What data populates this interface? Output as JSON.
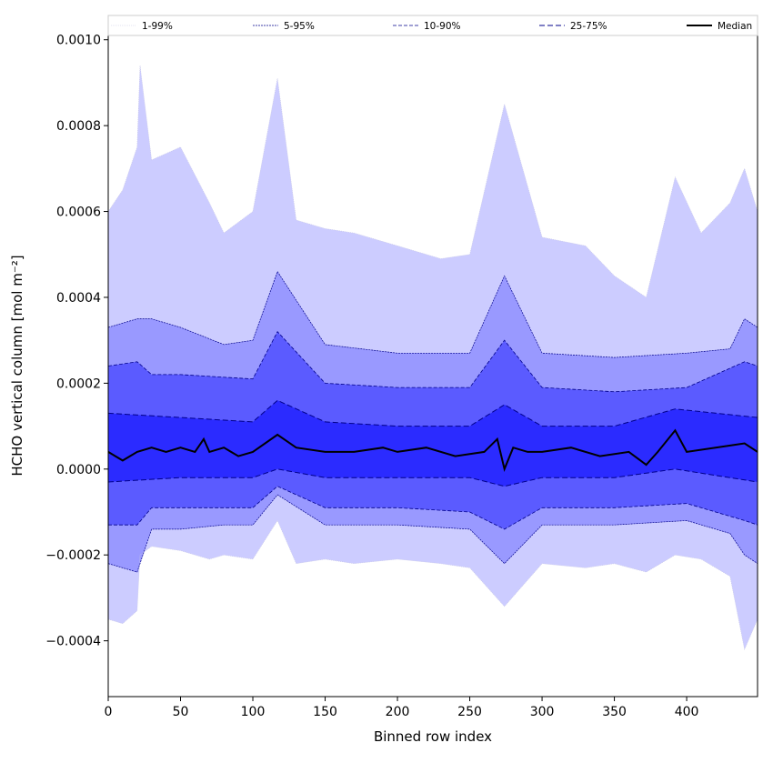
{
  "chart_data": {
    "type": "area",
    "xlabel": "Binned row index",
    "ylabel": "HCHO vertical column [mol m⁻²]",
    "xlim": [
      0,
      449
    ],
    "ylim": [
      -0.00053,
      0.00101
    ],
    "x_ticks": [
      0,
      50,
      100,
      150,
      200,
      250,
      300,
      350,
      400
    ],
    "x_tick_labels": [
      "0",
      "50",
      "100",
      "150",
      "200",
      "250",
      "300",
      "350",
      "400"
    ],
    "y_ticks": [
      -0.0004,
      -0.0002,
      0.0,
      0.0002,
      0.0004,
      0.0006,
      0.0008,
      0.001
    ],
    "y_tick_labels": [
      "−0.0004",
      "−0.0002",
      "0.0000",
      "0.0002",
      "0.0004",
      "0.0006",
      "0.0008",
      "0.0010"
    ],
    "grid": false,
    "legend_position": "top",
    "colors": {
      "band_1_99": "#ccccff",
      "band_5_95": "#9999ff",
      "band_10_90": "#5b5bff",
      "band_25_75": "#2b2bff",
      "percentile_line": "#00008b",
      "median": "#000000"
    },
    "series": [
      {
        "name": "1-99%",
        "x": [
          0,
          10,
          20,
          22,
          30,
          50,
          70,
          80,
          100,
          117,
          130,
          150,
          170,
          200,
          230,
          250,
          274,
          300,
          330,
          350,
          372,
          392,
          410,
          430,
          440,
          449
        ],
        "upper": [
          0.0006,
          0.00065,
          0.00075,
          0.00094,
          0.00072,
          0.00075,
          0.00062,
          0.00055,
          0.0006,
          0.00091,
          0.00058,
          0.00056,
          0.00055,
          0.00052,
          0.00049,
          0.0005,
          0.00085,
          0.00054,
          0.00052,
          0.00045,
          0.0004,
          0.00068,
          0.00055,
          0.00062,
          0.0007,
          0.0006
        ],
        "lower": [
          -0.00035,
          -0.00036,
          -0.00033,
          -0.0002,
          -0.00018,
          -0.00019,
          -0.00021,
          -0.0002,
          -0.00021,
          -0.00012,
          -0.00022,
          -0.00021,
          -0.00022,
          -0.00021,
          -0.00022,
          -0.00023,
          -0.00032,
          -0.00022,
          -0.00023,
          -0.00022,
          -0.00024,
          -0.0002,
          -0.00021,
          -0.00025,
          -0.00042,
          -0.00035
        ]
      },
      {
        "name": "5-95%",
        "x": [
          0,
          20,
          30,
          50,
          80,
          100,
          117,
          150,
          200,
          250,
          274,
          300,
          350,
          400,
          430,
          440,
          449
        ],
        "upper": [
          0.00033,
          0.00035,
          0.00035,
          0.00033,
          0.00029,
          0.0003,
          0.00046,
          0.00029,
          0.00027,
          0.00027,
          0.00045,
          0.00027,
          0.00026,
          0.00027,
          0.00028,
          0.00035,
          0.00033
        ],
        "lower": [
          -0.00022,
          -0.00024,
          -0.00014,
          -0.00014,
          -0.00013,
          -0.00013,
          -6e-05,
          -0.00013,
          -0.00013,
          -0.00014,
          -0.00022,
          -0.00013,
          -0.00013,
          -0.00012,
          -0.00015,
          -0.0002,
          -0.00022
        ]
      },
      {
        "name": "10-90%",
        "x": [
          0,
          20,
          30,
          50,
          100,
          117,
          150,
          200,
          250,
          274,
          300,
          350,
          400,
          440,
          449
        ],
        "upper": [
          0.00024,
          0.00025,
          0.00022,
          0.00022,
          0.00021,
          0.00032,
          0.0002,
          0.00019,
          0.00019,
          0.0003,
          0.00019,
          0.00018,
          0.00019,
          0.00025,
          0.00024
        ],
        "lower": [
          -0.00013,
          -0.00013,
          -9e-05,
          -9e-05,
          -9e-05,
          -4e-05,
          -9e-05,
          -9e-05,
          -0.0001,
          -0.00014,
          -9e-05,
          -9e-05,
          -8e-05,
          -0.00012,
          -0.00013
        ]
      },
      {
        "name": "25-75%",
        "x": [
          0,
          50,
          100,
          117,
          150,
          200,
          250,
          274,
          300,
          350,
          392,
          449
        ],
        "upper": [
          0.00013,
          0.00012,
          0.00011,
          0.00016,
          0.00011,
          0.0001,
          0.0001,
          0.00015,
          0.0001,
          0.0001,
          0.00014,
          0.00012
        ],
        "lower": [
          -3e-05,
          -2e-05,
          -2e-05,
          0.0,
          -2e-05,
          -2e-05,
          -2e-05,
          -4e-05,
          -2e-05,
          -2e-05,
          0.0,
          -3e-05
        ]
      },
      {
        "name": "Median",
        "x": [
          0,
          10,
          20,
          30,
          40,
          50,
          60,
          66,
          70,
          80,
          90,
          100,
          117,
          130,
          150,
          170,
          190,
          200,
          220,
          240,
          260,
          269,
          274,
          280,
          290,
          300,
          320,
          340,
          360,
          372,
          380,
          392,
          400,
          420,
          440,
          449
        ],
        "y": [
          4e-05,
          2e-05,
          4e-05,
          5e-05,
          4e-05,
          5e-05,
          4e-05,
          7e-05,
          4e-05,
          5e-05,
          3e-05,
          4e-05,
          8e-05,
          5e-05,
          4e-05,
          4e-05,
          5e-05,
          4e-05,
          5e-05,
          3e-05,
          4e-05,
          7e-05,
          0.0,
          5e-05,
          4e-05,
          4e-05,
          5e-05,
          3e-05,
          4e-05,
          1e-05,
          4e-05,
          9e-05,
          4e-05,
          5e-05,
          6e-05,
          4e-05
        ]
      }
    ]
  }
}
